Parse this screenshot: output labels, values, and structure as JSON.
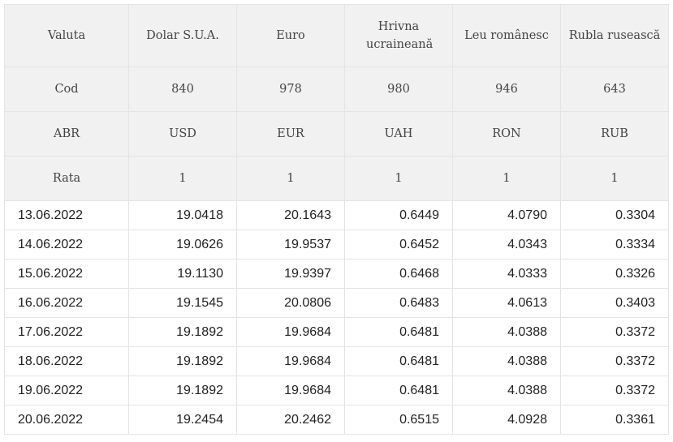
{
  "table": {
    "headers": {
      "names": [
        "Valuta",
        "Dolar S.U.A.",
        "Euro",
        "Hrivna ucraineană",
        "Leu românesc",
        "Rubla rusească"
      ],
      "codes": [
        "Cod",
        "840",
        "978",
        "980",
        "946",
        "643"
      ],
      "abbrs": [
        "ABR",
        "USD",
        "EUR",
        "UAH",
        "RON",
        "RUB"
      ],
      "rates": [
        "Rata",
        "1",
        "1",
        "1",
        "1",
        "1"
      ]
    },
    "rows": [
      [
        "13.06.2022",
        "19.0418",
        "20.1643",
        "0.6449",
        "4.0790",
        "0.3304"
      ],
      [
        "14.06.2022",
        "19.0626",
        "19.9537",
        "0.6452",
        "4.0343",
        "0.3334"
      ],
      [
        "15.06.2022",
        "19.1130",
        "19.9397",
        "0.6468",
        "4.0333",
        "0.3326"
      ],
      [
        "16.06.2022",
        "19.1545",
        "20.0806",
        "0.6483",
        "4.0613",
        "0.3403"
      ],
      [
        "17.06.2022",
        "19.1892",
        "19.9684",
        "0.6481",
        "4.0388",
        "0.3372"
      ],
      [
        "18.06.2022",
        "19.1892",
        "19.9684",
        "0.6481",
        "4.0388",
        "0.3372"
      ],
      [
        "19.06.2022",
        "19.1892",
        "19.9684",
        "0.6481",
        "4.0388",
        "0.3372"
      ],
      [
        "20.06.2022",
        "19.2454",
        "20.2462",
        "0.6515",
        "4.0928",
        "0.3361"
      ]
    ]
  }
}
